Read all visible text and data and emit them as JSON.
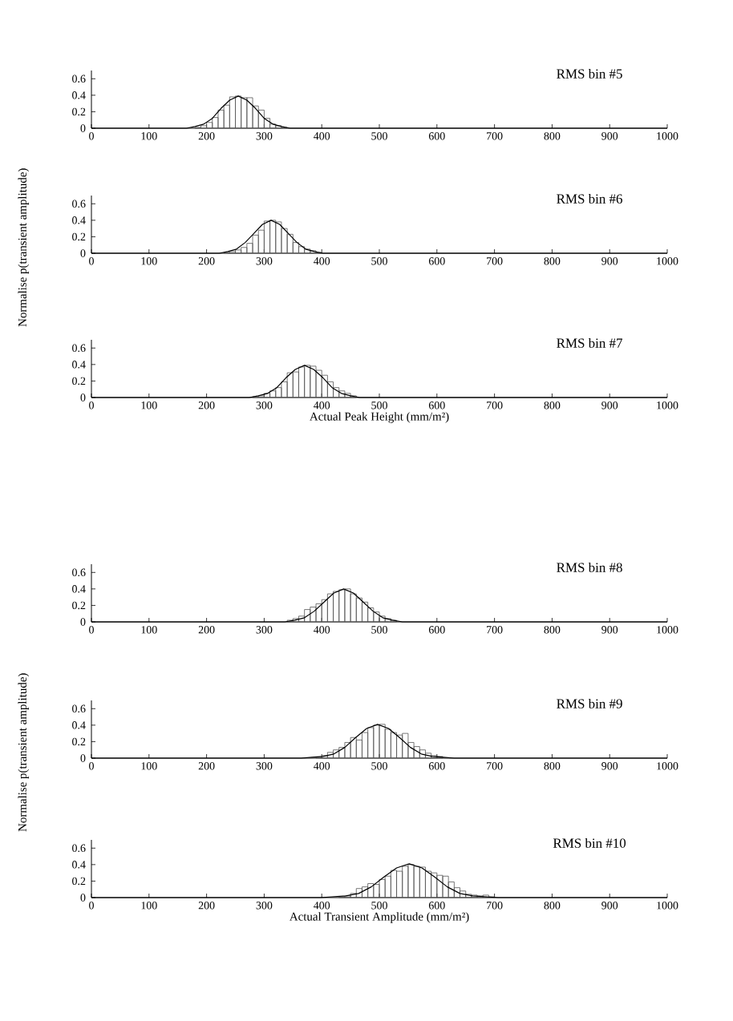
{
  "chart_data": [
    {
      "type": "histogram",
      "title": "RMS bin #5",
      "xlim": [
        0,
        1000
      ],
      "ylim": [
        0,
        0.7
      ],
      "xticks": [
        0,
        100,
        200,
        300,
        400,
        500,
        600,
        700,
        800,
        900,
        1000
      ],
      "yticks": [
        0,
        0.2,
        0.4,
        0.6
      ],
      "color": "#555555",
      "bins": [
        180,
        190,
        200,
        210,
        220,
        230,
        240,
        250,
        260,
        270,
        280,
        290,
        300,
        310,
        320,
        330,
        340
      ],
      "values": [
        0.01,
        0.03,
        0.07,
        0.13,
        0.22,
        0.28,
        0.38,
        0.39,
        0.37,
        0.37,
        0.27,
        0.22,
        0.12,
        0.05,
        0.03,
        0.01
      ],
      "series": [
        {
          "type": "line",
          "color": "#000000",
          "x": [
            0,
            150,
            165,
            180,
            195,
            210,
            225,
            240,
            255,
            270,
            285,
            300,
            315,
            330,
            345,
            360,
            1000
          ],
          "values": [
            0,
            0,
            0,
            0.02,
            0.05,
            0.12,
            0.24,
            0.34,
            0.39,
            0.34,
            0.24,
            0.12,
            0.05,
            0.02,
            0,
            0,
            0
          ]
        }
      ]
    },
    {
      "type": "histogram",
      "title": "RMS bin #6",
      "ylabel": "Normalise p(transient amplitude)",
      "xlim": [
        0,
        1000
      ],
      "ylim": [
        0,
        0.7
      ],
      "xticks": [
        0,
        100,
        200,
        300,
        400,
        500,
        600,
        700,
        800,
        900,
        1000
      ],
      "yticks": [
        0,
        0.2,
        0.4,
        0.6
      ],
      "color": "#555555",
      "bins": [
        230,
        240,
        250,
        260,
        270,
        280,
        290,
        300,
        310,
        320,
        330,
        340,
        350,
        360,
        370,
        380,
        390,
        400
      ],
      "values": [
        0.01,
        0.02,
        0.04,
        0.07,
        0.12,
        0.22,
        0.28,
        0.39,
        0.4,
        0.38,
        0.3,
        0.23,
        0.13,
        0.08,
        0.05,
        0.03,
        0.01
      ],
      "series": [
        {
          "type": "line",
          "color": "#000000",
          "x": [
            0,
            207,
            222,
            237,
            252,
            267,
            282,
            297,
            312,
            327,
            342,
            357,
            372,
            387,
            402,
            417,
            1000
          ],
          "values": [
            0,
            0,
            0,
            0.02,
            0.05,
            0.13,
            0.24,
            0.35,
            0.4,
            0.35,
            0.24,
            0.13,
            0.05,
            0.02,
            0,
            0,
            0
          ]
        }
      ]
    },
    {
      "type": "histogram",
      "title": "RMS bin #7",
      "xlabel": "Actual Peak Height (mm/m²)",
      "xlim": [
        0,
        1000
      ],
      "ylim": [
        0,
        0.7
      ],
      "xticks": [
        0,
        100,
        200,
        300,
        400,
        500,
        600,
        700,
        800,
        900,
        1000
      ],
      "yticks": [
        0,
        0.2,
        0.4,
        0.6
      ],
      "color": "#555555",
      "bins": [
        280,
        290,
        300,
        310,
        320,
        330,
        340,
        350,
        360,
        370,
        380,
        390,
        400,
        410,
        420,
        430,
        440,
        450,
        460
      ],
      "values": [
        0.01,
        0.02,
        0.05,
        0.08,
        0.12,
        0.19,
        0.3,
        0.31,
        0.37,
        0.39,
        0.38,
        0.33,
        0.27,
        0.19,
        0.12,
        0.08,
        0.05,
        0.02
      ],
      "series": [
        {
          "type": "line",
          "color": "#000000",
          "x": [
            0,
            258,
            274,
            290,
            306,
            322,
            338,
            354,
            370,
            386,
            402,
            418,
            434,
            450,
            466,
            482,
            1000
          ],
          "values": [
            0,
            0,
            0,
            0.02,
            0.05,
            0.12,
            0.24,
            0.34,
            0.39,
            0.34,
            0.24,
            0.12,
            0.05,
            0.02,
            0,
            0,
            0
          ]
        }
      ]
    },
    {
      "type": "histogram",
      "title": "RMS bin #8",
      "xlim": [
        0,
        1000
      ],
      "ylim": [
        0,
        0.7
      ],
      "xticks": [
        0,
        100,
        200,
        300,
        400,
        500,
        600,
        700,
        800,
        900,
        1000
      ],
      "yticks": [
        0,
        0.2,
        0.4,
        0.6
      ],
      "color": "#555555",
      "bins": [
        340,
        350,
        360,
        370,
        380,
        390,
        400,
        410,
        420,
        430,
        440,
        450,
        460,
        470,
        480,
        490,
        500,
        510,
        520,
        530
      ],
      "values": [
        0.02,
        0.04,
        0.07,
        0.15,
        0.18,
        0.22,
        0.27,
        0.34,
        0.37,
        0.39,
        0.4,
        0.34,
        0.29,
        0.24,
        0.17,
        0.12,
        0.07,
        0.04,
        0.02
      ],
      "series": [
        {
          "type": "line",
          "color": "#000000",
          "x": [
            0,
            319,
            336,
            353,
            370,
            387,
            404,
            421,
            438,
            455,
            472,
            489,
            506,
            523,
            540,
            557,
            1000
          ],
          "values": [
            0,
            0,
            0,
            0.02,
            0.05,
            0.13,
            0.24,
            0.35,
            0.4,
            0.35,
            0.24,
            0.13,
            0.05,
            0.02,
            0,
            0,
            0
          ]
        }
      ]
    },
    {
      "type": "histogram",
      "title": "RMS bin #9",
      "ylabel": "Normalise p(transient amplitude)",
      "xlim": [
        0,
        1000
      ],
      "ylim": [
        0,
        0.7
      ],
      "xticks": [
        0,
        100,
        200,
        300,
        400,
        500,
        600,
        700,
        800,
        900,
        1000
      ],
      "yticks": [
        0,
        0.2,
        0.4,
        0.6
      ],
      "color": "#555555",
      "bins": [
        390,
        400,
        410,
        420,
        430,
        440,
        450,
        460,
        470,
        480,
        490,
        500,
        510,
        520,
        530,
        540,
        550,
        560,
        570,
        580,
        590,
        600,
        610
      ],
      "values": [
        0.01,
        0.03,
        0.07,
        0.1,
        0.13,
        0.19,
        0.25,
        0.22,
        0.31,
        0.37,
        0.4,
        0.41,
        0.35,
        0.31,
        0.28,
        0.3,
        0.19,
        0.14,
        0.1,
        0.06,
        0.03,
        0.02
      ],
      "series": [
        {
          "type": "line",
          "color": "#000000",
          "x": [
            0,
            364,
            383,
            402,
            421,
            440,
            459,
            478,
            497,
            516,
            535,
            554,
            573,
            592,
            611,
            630,
            1000
          ],
          "values": [
            0,
            0,
            0.01,
            0.02,
            0.05,
            0.13,
            0.25,
            0.36,
            0.41,
            0.36,
            0.25,
            0.13,
            0.05,
            0.02,
            0.01,
            0,
            0
          ]
        }
      ]
    },
    {
      "type": "histogram",
      "title": "RMS bin #10",
      "xlabel": "Actual Transient Amplitude (mm/m²)",
      "xlim": [
        0,
        1000
      ],
      "ylim": [
        0,
        0.7
      ],
      "xticks": [
        0,
        100,
        200,
        300,
        400,
        500,
        600,
        700,
        800,
        900,
        1000
      ],
      "yticks": [
        0,
        0.2,
        0.4,
        0.6
      ],
      "color": "#555555",
      "bins": [
        430,
        440,
        450,
        460,
        470,
        480,
        490,
        500,
        510,
        520,
        530,
        540,
        550,
        560,
        570,
        580,
        590,
        600,
        610,
        620,
        630,
        640,
        650,
        660,
        670,
        680,
        690,
        700
      ],
      "values": [
        0.01,
        0.02,
        0.05,
        0.11,
        0.13,
        0.17,
        0.16,
        0.22,
        0.26,
        0.33,
        0.32,
        0.38,
        0.4,
        0.38,
        0.37,
        0.32,
        0.3,
        0.27,
        0.26,
        0.19,
        0.12,
        0.08,
        0.04,
        0.03,
        0.02,
        0.03,
        0.01
      ],
      "series": [
        {
          "type": "line",
          "color": "#000000",
          "x": [
            0,
            398,
            420,
            442,
            464,
            486,
            508,
            530,
            552,
            574,
            596,
            618,
            640,
            662,
            684,
            706,
            1000
          ],
          "values": [
            0,
            0,
            0.01,
            0.02,
            0.05,
            0.13,
            0.25,
            0.36,
            0.41,
            0.36,
            0.25,
            0.13,
            0.05,
            0.02,
            0.01,
            0,
            0
          ]
        }
      ]
    }
  ]
}
